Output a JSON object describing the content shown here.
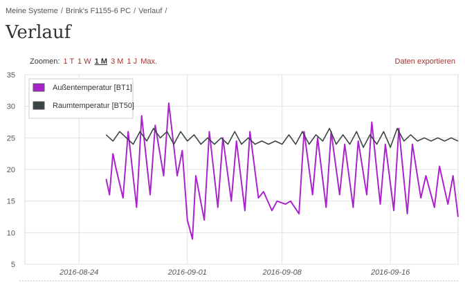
{
  "breadcrumb": {
    "items": [
      "Meine Systeme",
      "Brink's F1155-6 PC",
      "Verlauf"
    ],
    "separator": "/"
  },
  "page": {
    "title": "Verlauf"
  },
  "zoom": {
    "label": "Zoomen:",
    "options": [
      {
        "label": "1 T",
        "active": false
      },
      {
        "label": "1 W",
        "active": false
      },
      {
        "label": "1 M",
        "active": true
      },
      {
        "label": "3 M",
        "active": false
      },
      {
        "label": "1 J",
        "active": false
      },
      {
        "label": "Max.",
        "active": false
      }
    ]
  },
  "export": {
    "label": "Daten exportieren"
  },
  "colors": {
    "link": "#a8322e",
    "series_outdoor": "#aa22cc",
    "series_indoor": "#3a4444",
    "grid": "#e0e0e0"
  },
  "chart_data": {
    "type": "line",
    "title": "",
    "xlabel": "",
    "ylabel": "",
    "ylim": [
      5,
      35
    ],
    "yticks": [
      "5",
      "10",
      "15",
      "20",
      "25",
      "30",
      "35"
    ],
    "xlim": [
      "2016-08-20",
      "2016-09-21"
    ],
    "xticks": [
      "2016-08-24",
      "2016-09-01",
      "2016-09-08",
      "2016-09-16"
    ],
    "grid": true,
    "legend": "top-left",
    "series": [
      {
        "name": "Außentemperatur [BT1]",
        "color": "#aa22cc",
        "points": [
          [
            "2016-08-26 00:00",
            18.5
          ],
          [
            "2016-08-26 06:00",
            16.0
          ],
          [
            "2016-08-26 12:00",
            22.5
          ],
          [
            "2016-08-26 18:00",
            20.0
          ],
          [
            "2016-08-27 06:00",
            15.5
          ],
          [
            "2016-08-27 15:00",
            26.0
          ],
          [
            "2016-08-28 06:00",
            14.0
          ],
          [
            "2016-08-28 15:00",
            28.5
          ],
          [
            "2016-08-29 06:00",
            16.0
          ],
          [
            "2016-08-29 15:00",
            27.0
          ],
          [
            "2016-08-30 06:00",
            19.0
          ],
          [
            "2016-08-30 15:00",
            30.5
          ],
          [
            "2016-08-31 06:00",
            19.0
          ],
          [
            "2016-08-31 15:00",
            23.0
          ],
          [
            "2016-09-01 00:00",
            12.0
          ],
          [
            "2016-09-01 09:00",
            9.0
          ],
          [
            "2016-09-01 15:00",
            19.0
          ],
          [
            "2016-09-02 06:00",
            12.0
          ],
          [
            "2016-09-02 15:00",
            26.0
          ],
          [
            "2016-09-03 06:00",
            14.0
          ],
          [
            "2016-09-03 15:00",
            25.0
          ],
          [
            "2016-09-04 06:00",
            15.0
          ],
          [
            "2016-09-04 15:00",
            24.5
          ],
          [
            "2016-09-05 06:00",
            13.5
          ],
          [
            "2016-09-05 15:00",
            26.0
          ],
          [
            "2016-09-06 06:00",
            15.5
          ],
          [
            "2016-09-06 15:00",
            16.5
          ],
          [
            "2016-09-07 06:00",
            13.5
          ],
          [
            "2016-09-07 15:00",
            15.0
          ],
          [
            "2016-09-08 06:00",
            14.5
          ],
          [
            "2016-09-08 15:00",
            15.0
          ],
          [
            "2016-09-09 06:00",
            13.0
          ],
          [
            "2016-09-09 15:00",
            26.0
          ],
          [
            "2016-09-10 06:00",
            16.0
          ],
          [
            "2016-09-10 15:00",
            25.0
          ],
          [
            "2016-09-11 06:00",
            14.0
          ],
          [
            "2016-09-11 15:00",
            26.0
          ],
          [
            "2016-09-12 06:00",
            16.0
          ],
          [
            "2016-09-12 15:00",
            24.0
          ],
          [
            "2016-09-13 06:00",
            14.0
          ],
          [
            "2016-09-13 15:00",
            24.5
          ],
          [
            "2016-09-14 06:00",
            16.0
          ],
          [
            "2016-09-14 15:00",
            27.5
          ],
          [
            "2016-09-15 06:00",
            14.5
          ],
          [
            "2016-09-15 15:00",
            24.0
          ],
          [
            "2016-09-16 06:00",
            13.5
          ],
          [
            "2016-09-16 15:00",
            26.5
          ],
          [
            "2016-09-17 06:00",
            13.0
          ],
          [
            "2016-09-17 15:00",
            24.0
          ],
          [
            "2016-09-18 06:00",
            15.5
          ],
          [
            "2016-09-18 15:00",
            19.0
          ],
          [
            "2016-09-19 06:00",
            14.0
          ],
          [
            "2016-09-19 15:00",
            20.5
          ],
          [
            "2016-09-20 06:00",
            14.5
          ],
          [
            "2016-09-20 15:00",
            19.0
          ],
          [
            "2016-09-21 00:00",
            12.5
          ]
        ]
      },
      {
        "name": "Raumtemperatur [BT50]",
        "color": "#3a4444",
        "points": [
          [
            "2016-08-26 00:00",
            25.5
          ],
          [
            "2016-08-26 12:00",
            24.5
          ],
          [
            "2016-08-27 00:00",
            26.0
          ],
          [
            "2016-08-27 12:00",
            25.0
          ],
          [
            "2016-08-28 00:00",
            24.0
          ],
          [
            "2016-08-28 12:00",
            26.0
          ],
          [
            "2016-08-29 00:00",
            24.5
          ],
          [
            "2016-08-29 12:00",
            26.5
          ],
          [
            "2016-08-30 00:00",
            25.0
          ],
          [
            "2016-08-30 12:00",
            26.0
          ],
          [
            "2016-08-31 00:00",
            24.0
          ],
          [
            "2016-08-31 12:00",
            26.0
          ],
          [
            "2016-09-01 00:00",
            24.5
          ],
          [
            "2016-09-01 12:00",
            25.5
          ],
          [
            "2016-09-02 00:00",
            24.0
          ],
          [
            "2016-09-02 12:00",
            25.0
          ],
          [
            "2016-09-03 00:00",
            24.0
          ],
          [
            "2016-09-03 12:00",
            25.0
          ],
          [
            "2016-09-04 00:00",
            24.0
          ],
          [
            "2016-09-04 12:00",
            26.0
          ],
          [
            "2016-09-05 00:00",
            24.0
          ],
          [
            "2016-09-05 12:00",
            25.0
          ],
          [
            "2016-09-06 00:00",
            24.0
          ],
          [
            "2016-09-06 12:00",
            24.5
          ],
          [
            "2016-09-07 00:00",
            24.0
          ],
          [
            "2016-09-07 12:00",
            24.5
          ],
          [
            "2016-09-08 00:00",
            24.0
          ],
          [
            "2016-09-08 12:00",
            25.5
          ],
          [
            "2016-09-09 00:00",
            24.0
          ],
          [
            "2016-09-09 12:00",
            26.0
          ],
          [
            "2016-09-10 00:00",
            24.0
          ],
          [
            "2016-09-10 12:00",
            25.5
          ],
          [
            "2016-09-11 00:00",
            24.5
          ],
          [
            "2016-09-11 12:00",
            26.5
          ],
          [
            "2016-09-12 00:00",
            24.0
          ],
          [
            "2016-09-12 12:00",
            25.5
          ],
          [
            "2016-09-13 00:00",
            24.0
          ],
          [
            "2016-09-13 12:00",
            26.0
          ],
          [
            "2016-09-14 00:00",
            23.5
          ],
          [
            "2016-09-14 12:00",
            25.5
          ],
          [
            "2016-09-15 00:00",
            24.0
          ],
          [
            "2016-09-15 12:00",
            26.0
          ],
          [
            "2016-09-16 00:00",
            23.5
          ],
          [
            "2016-09-16 12:00",
            26.5
          ],
          [
            "2016-09-17 00:00",
            24.5
          ],
          [
            "2016-09-17 12:00",
            25.5
          ],
          [
            "2016-09-18 00:00",
            24.5
          ],
          [
            "2016-09-18 12:00",
            25.0
          ],
          [
            "2016-09-19 00:00",
            24.5
          ],
          [
            "2016-09-19 12:00",
            25.0
          ],
          [
            "2016-09-20 00:00",
            24.5
          ],
          [
            "2016-09-20 12:00",
            25.0
          ],
          [
            "2016-09-21 00:00",
            24.5
          ]
        ]
      }
    ]
  }
}
